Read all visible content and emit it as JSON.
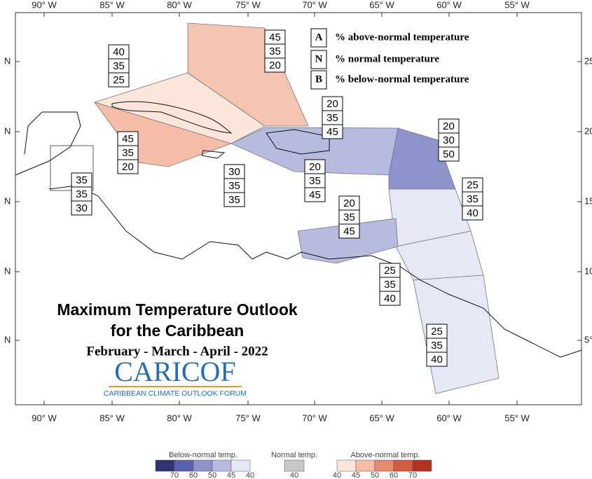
{
  "map": {
    "lon_labels": [
      "90° W",
      "85° W",
      "80° W",
      "75° W",
      "70° W",
      "65° W",
      "60° W",
      "55° W"
    ],
    "lat_labels_left": [
      "N",
      "N",
      "N",
      "N",
      "N"
    ],
    "lat_labels_right": [
      "25",
      "20°",
      "15°",
      "10°",
      "5°"
    ]
  },
  "key": [
    {
      "letter": "A",
      "text": "% above-normal temperature"
    },
    {
      "letter": "N",
      "text": "% normal temperature"
    },
    {
      "letter": "B",
      "text": "% below-normal temperature"
    }
  ],
  "regions": [
    {
      "values": [
        40,
        35,
        25
      ]
    },
    {
      "values": [
        45,
        35,
        20
      ]
    },
    {
      "values": [
        45,
        35,
        20
      ]
    },
    {
      "values": [
        35,
        35,
        30
      ]
    },
    {
      "values": [
        30,
        35,
        35
      ]
    },
    {
      "values": [
        20,
        35,
        45
      ]
    },
    {
      "values": [
        20,
        35,
        45
      ]
    },
    {
      "values": [
        20,
        30,
        50
      ]
    },
    {
      "values": [
        25,
        35,
        40
      ]
    },
    {
      "values": [
        20,
        35,
        45
      ]
    },
    {
      "values": [
        25,
        35,
        40
      ]
    },
    {
      "values": [
        25,
        35,
        40
      ]
    }
  ],
  "title": {
    "line1": "Maximum Temperature Outlook",
    "line2": "for the Caribbean",
    "period": "February - March - April - 2022"
  },
  "logo": {
    "name": "CARICOF",
    "subtitle": "CARIBBEAN CLIMATE OUTLOOK FORUM"
  },
  "colorbar": {
    "below_label": "Below-normal temp.",
    "normal_label": "Normal temp.",
    "above_label": "Above-normal temp.",
    "below_ticks": [
      70,
      60,
      50,
      45,
      40
    ],
    "normal_ticks": [
      40
    ],
    "above_ticks": [
      40,
      45,
      50,
      60,
      70
    ]
  }
}
